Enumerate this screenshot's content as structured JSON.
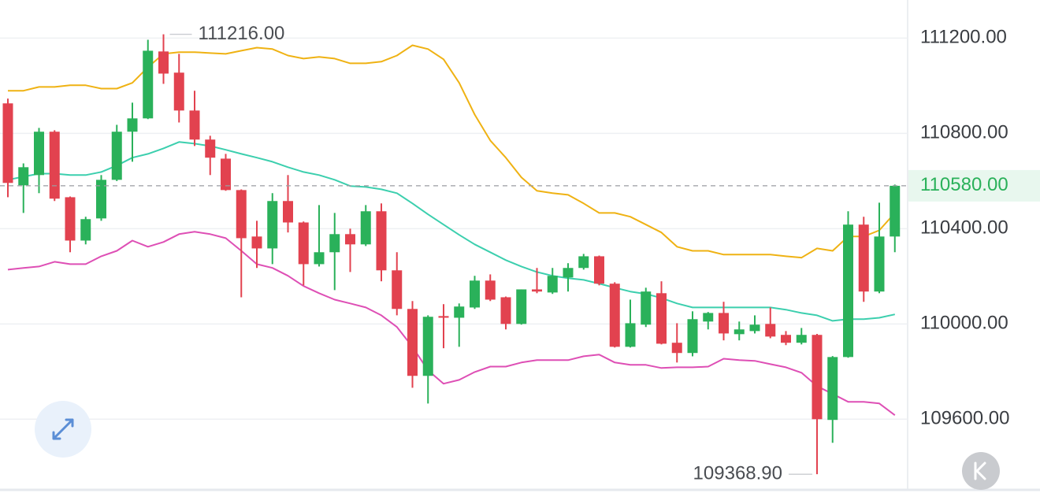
{
  "chart_data": {
    "type": "candlestick",
    "up_color": "#2ab15a",
    "down_color": "#e2424f",
    "ylim": [
      109310,
      111360
    ],
    "yticks": [
      {
        "value": 109600,
        "label": "109600.00"
      },
      {
        "value": 110000,
        "label": "110000.00"
      },
      {
        "value": 110400,
        "label": "110400.00"
      },
      {
        "value": 110800,
        "label": "110800.00"
      },
      {
        "value": 111200,
        "label": "111200.00"
      }
    ],
    "grid": true,
    "ohlc": {
      "open": [
        110926,
        110582,
        110625,
        110807,
        110532,
        110350,
        110443,
        110605,
        110807,
        110863,
        111144,
        111055,
        110896,
        110774,
        110694,
        110562,
        110367,
        110317,
        110516,
        110426,
        110251,
        110301,
        110377,
        110334,
        110473,
        110225,
        110063,
        109782,
        110033,
        110026,
        110069,
        110182,
        110112,
        110000,
        110145,
        110132,
        110195,
        110235,
        110284,
        110169,
        109904,
        109997,
        110129,
        109921,
        109878,
        110010,
        110046,
        109957,
        109970,
        110000,
        109954,
        109921,
        109954,
        109597,
        109861,
        110417,
        110136,
        110367
      ],
      "high": [
        110946,
        110674,
        110823,
        110813,
        110535,
        110450,
        110625,
        110836,
        110929,
        111193,
        111216,
        111134,
        110979,
        110790,
        110714,
        110565,
        110433,
        110549,
        110625,
        110430,
        110499,
        110466,
        110400,
        110499,
        110506,
        110301,
        110096,
        110036,
        110083,
        110086,
        110202,
        110208,
        110115,
        110145,
        110235,
        110235,
        110255,
        110294,
        110287,
        110175,
        110102,
        110152,
        110179,
        110003,
        110053,
        110050,
        110093,
        110010,
        110036,
        110069,
        109970,
        109983,
        109958,
        109865,
        110473,
        110450,
        110509,
        110585
      ],
      "low": [
        110532,
        110466,
        110549,
        110516,
        110301,
        110334,
        110433,
        110600,
        110681,
        110860,
        111008,
        110846,
        110747,
        110625,
        110559,
        110112,
        110235,
        110251,
        110384,
        110162,
        110241,
        110142,
        110218,
        110327,
        110179,
        110036,
        109732,
        109666,
        109898,
        109904,
        110063,
        110096,
        109977,
        109997,
        110129,
        110126,
        110136,
        110228,
        110162,
        109901,
        109901,
        109987,
        109914,
        109838,
        109864,
        109977,
        109931,
        109931,
        109960,
        109940,
        109911,
        109914,
        109368.9,
        109501,
        109858,
        110093,
        110129,
        110301
      ],
      "close": [
        110592,
        110658,
        110807,
        110526,
        110350,
        110440,
        110605,
        110807,
        110863,
        111147,
        111051,
        110896,
        110774,
        110698,
        110562,
        110360,
        110317,
        110516,
        110426,
        110251,
        110301,
        110377,
        110334,
        110473,
        110225,
        110063,
        109782,
        110030,
        110026,
        110073,
        110182,
        110102,
        110000,
        110145,
        110136,
        110202,
        110235,
        110284,
        110169,
        109904,
        110003,
        110136,
        109917,
        109878,
        110020,
        110046,
        109960,
        109977,
        109997,
        109947,
        109921,
        109954,
        109600,
        109861,
        110417,
        110136,
        110367,
        110580
      ]
    },
    "bands": [
      {
        "color": "#efb213",
        "values": [
          110979,
          110979,
          110995,
          110995,
          111002,
          111002,
          110988,
          110988,
          111012,
          111078,
          111134,
          111141,
          111141,
          111137,
          111134,
          111147,
          111160,
          111154,
          111127,
          111114,
          111121,
          111114,
          111094,
          111094,
          111101,
          111127,
          111170,
          111154,
          111111,
          111012,
          110879,
          110770,
          110698,
          110615,
          110559,
          110549,
          110542,
          110506,
          110466,
          110466,
          110450,
          110417,
          110384,
          110324,
          110307,
          110307,
          110291,
          110291,
          110291,
          110291,
          110284,
          110278,
          110317,
          110307,
          110367,
          110367,
          110393,
          110466
        ]
      },
      {
        "color": "#3ccfae",
        "values": [
          110605,
          110618,
          110631,
          110631,
          110625,
          110625,
          110638,
          110665,
          110698,
          110714,
          110737,
          110764,
          110757,
          110747,
          110731,
          110714,
          110698,
          110681,
          110658,
          110638,
          110625,
          110605,
          110579,
          110575,
          110565,
          110549,
          110506,
          110460,
          110417,
          110374,
          110334,
          110301,
          110268,
          110241,
          110218,
          110202,
          110192,
          110185,
          110169,
          110152,
          110136,
          110126,
          110109,
          110086,
          110069,
          110069,
          110069,
          110069,
          110069,
          110069,
          110060,
          110046,
          110036,
          110013,
          110020,
          110020,
          110026,
          110040
        ]
      },
      {
        "color": "#de4fb5",
        "values": [
          110228,
          110235,
          110241,
          110261,
          110251,
          110251,
          110284,
          110307,
          110350,
          110324,
          110344,
          110377,
          110387,
          110377,
          110360,
          110307,
          110251,
          110235,
          110202,
          110159,
          110129,
          110102,
          110086,
          110069,
          110036,
          109987,
          109904,
          109805,
          109749,
          109765,
          109798,
          109821,
          109821,
          109838,
          109848,
          109848,
          109848,
          109864,
          109871,
          109838,
          109828,
          109828,
          109815,
          109818,
          109818,
          109821,
          109854,
          109848,
          109845,
          109831,
          109818,
          109795,
          109739,
          109706,
          109673,
          109673,
          109666,
          109617
        ]
      }
    ],
    "annotations": [
      {
        "value": 111216,
        "label": "111216.00"
      },
      {
        "value": 109368.9,
        "label": "109368.90"
      }
    ],
    "last_price": {
      "value": 110580,
      "label": "110580.00"
    }
  }
}
